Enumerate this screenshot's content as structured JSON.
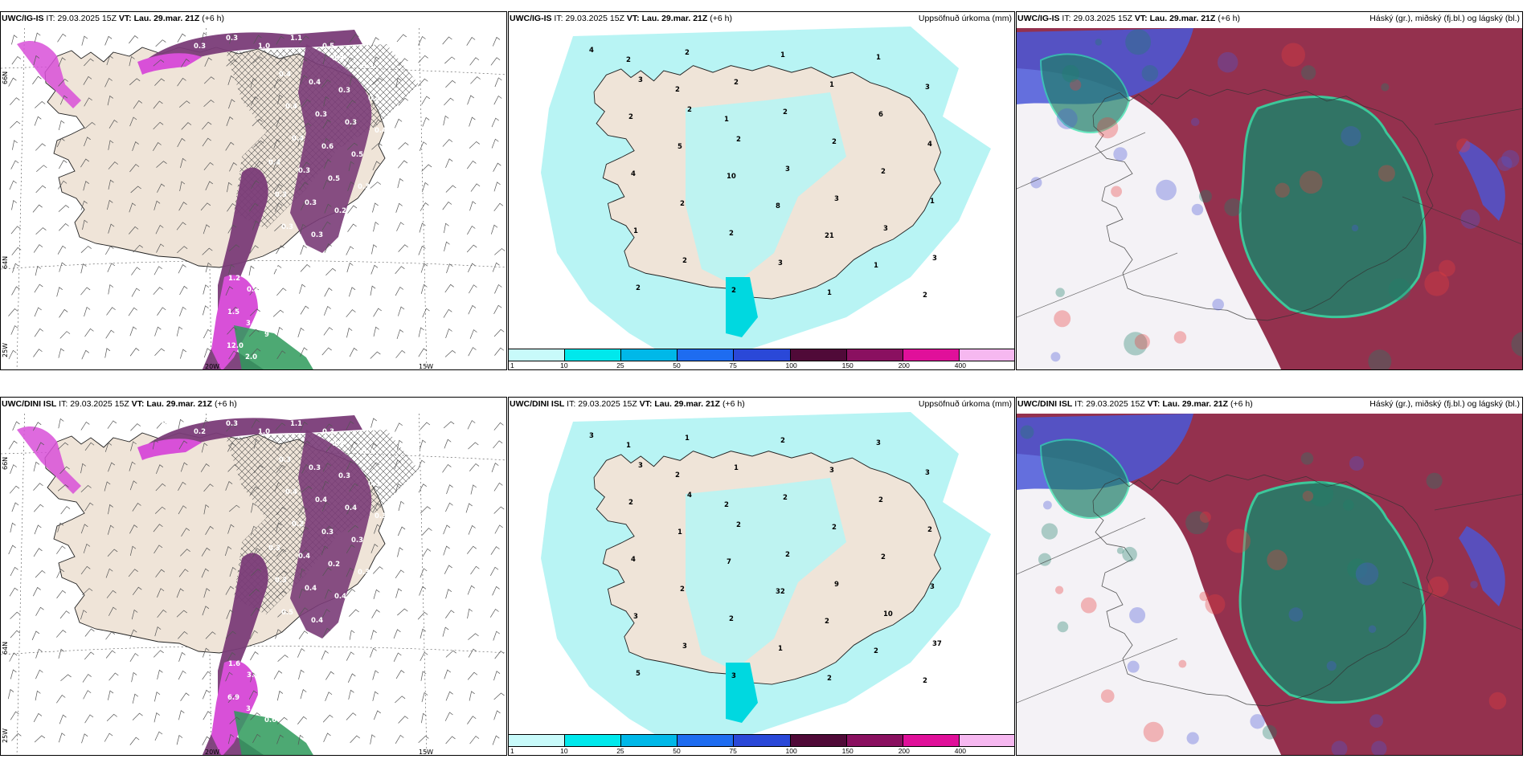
{
  "panels": [
    {
      "model": "UWC/IG-IS",
      "it_label": "IT:",
      "it_value": "29.03.2025 15Z",
      "vt_label": "VT:",
      "vt_value": "Lau. 29.mar. 21Z",
      "lead": "(+6 h)",
      "right_title": "",
      "type": "wind-precip",
      "lat_labels": [
        "66N",
        "64N",
        "25W"
      ],
      "lon_labels": [
        "20W",
        "15W"
      ],
      "values": [
        "0.8",
        "0.3",
        "0.3",
        "1.0",
        "1.1",
        "0.5",
        "0.3",
        "0.3",
        "0.4",
        "0.4",
        "0.3",
        "0.4",
        "0.4",
        "0.3",
        "0.3",
        "0.4",
        "0.4",
        "0.6",
        "0.5",
        "0.4",
        "0.3",
        "0.5",
        "0.3",
        "0.3",
        "0.3",
        "0.2",
        "0.2",
        "0.3",
        "0.3",
        "0.4",
        "0.6",
        "1.2",
        "0.7",
        "2.2",
        "1.5",
        "3.8",
        "9",
        "12.0",
        "2.0"
      ]
    },
    {
      "model": "UWC/IG-IS",
      "it_label": "IT:",
      "it_value": "29.03.2025 15Z",
      "vt_label": "VT:",
      "vt_value": "Lau. 29.mar. 21Z",
      "lead": "(+6 h)",
      "right_title": "Uppsöfnuð úrkoma (mm)",
      "type": "accum",
      "values": [
        "4",
        "3",
        "2",
        "2",
        "3",
        "3",
        "3",
        "3",
        "2",
        "2",
        "2",
        "2",
        "2",
        "2",
        "1",
        "1",
        "2",
        "2",
        "1",
        "1",
        "6",
        "4",
        "4",
        "2",
        "2",
        "3",
        "1",
        "1",
        "3",
        "2",
        "5",
        "10",
        "8",
        "21",
        "1",
        "2",
        "2",
        "2",
        "1"
      ],
      "colorbar": [
        "1",
        "10",
        "25",
        "50",
        "75",
        "100",
        "150",
        "200",
        "400"
      ]
    },
    {
      "model": "UWC/IG-IS",
      "it_label": "IT:",
      "it_value": "29.03.2025 15Z",
      "vt_label": "VT:",
      "vt_value": "Lau. 29.mar. 21Z",
      "lead": "(+6 h)",
      "right_title": "Háský (gr.), miðský (fj.bl.) og lágský (bl.)",
      "type": "cloud"
    },
    {
      "model": "UWC/DINI ISL",
      "it_label": "IT:",
      "it_value": "29.03.2025 15Z",
      "vt_label": "VT:",
      "vt_value": "Lau. 29.mar. 21Z",
      "lead": "(+6 h)",
      "right_title": "",
      "type": "wind-precip",
      "lat_labels": [
        "66N",
        "64N",
        "25W"
      ],
      "lon_labels": [
        "20W",
        "15W"
      ],
      "values": [
        "0.2",
        "0.2",
        "0.3",
        "1.0",
        "1.1",
        "0.3",
        "0.5",
        "0.3",
        "0.3",
        "0.3",
        "0.3",
        "0.3",
        "0.4",
        "0.4",
        "0.4",
        "0.3",
        "0.2",
        "0.3",
        "0.3",
        "0.3",
        "0.4",
        "0.2",
        "0.3",
        "0.3",
        "0.4",
        "0.4",
        "0.2",
        "0.5",
        "0.4",
        "1.5",
        "0.5",
        "1.6",
        "3.4",
        "3.3",
        "6.9",
        "3.2",
        "0.6"
      ]
    },
    {
      "model": "UWC/DINI ISL",
      "it_label": "IT:",
      "it_value": "29.03.2025 15Z",
      "vt_label": "VT:",
      "vt_value": "Lau. 29.mar. 21Z",
      "lead": "(+6 h)",
      "right_title": "Uppsöfnuð úrkoma (mm)",
      "type": "accum",
      "values": [
        "3",
        "3",
        "4",
        "2",
        "2",
        "9",
        "10",
        "37",
        "5",
        "1",
        "1",
        "2",
        "2",
        "2",
        "3",
        "3",
        "3",
        "3",
        "2",
        "3",
        "2",
        "2",
        "4",
        "2",
        "2",
        "1",
        "2",
        "3",
        "3",
        "2",
        "1",
        "7",
        "32",
        "2",
        "2",
        "2",
        "1",
        "2",
        "2"
      ],
      "colorbar": [
        "1",
        "10",
        "25",
        "50",
        "75",
        "100",
        "150",
        "200",
        "400"
      ]
    },
    {
      "model": "UWC/DINI ISL",
      "it_label": "IT:",
      "it_value": "29.03.2025 15Z",
      "vt_label": "VT:",
      "vt_value": "Lau. 29.mar. 21Z",
      "lead": "(+6 h)",
      "right_title": "Háský (gr.), miðský (fj.bl.) og lágský (bl.)",
      "type": "cloud"
    }
  ],
  "colors": {
    "land": "#efe4d8",
    "accum_light": "#b8f4f4",
    "accum_bar": [
      "#c8fafa",
      "#00e8ec",
      "#00b8e8",
      "#1e6cf0",
      "#2a48d8",
      "#500a38",
      "#8a1060",
      "#e0109a",
      "#f6b8f0"
    ],
    "precip_purple": "#7a3c78",
    "precip_magenta": "#d850d8",
    "cloud_high": "#20806a",
    "cloud_mid": "#8a1c3c",
    "cloud_low": "#4a58d8"
  }
}
